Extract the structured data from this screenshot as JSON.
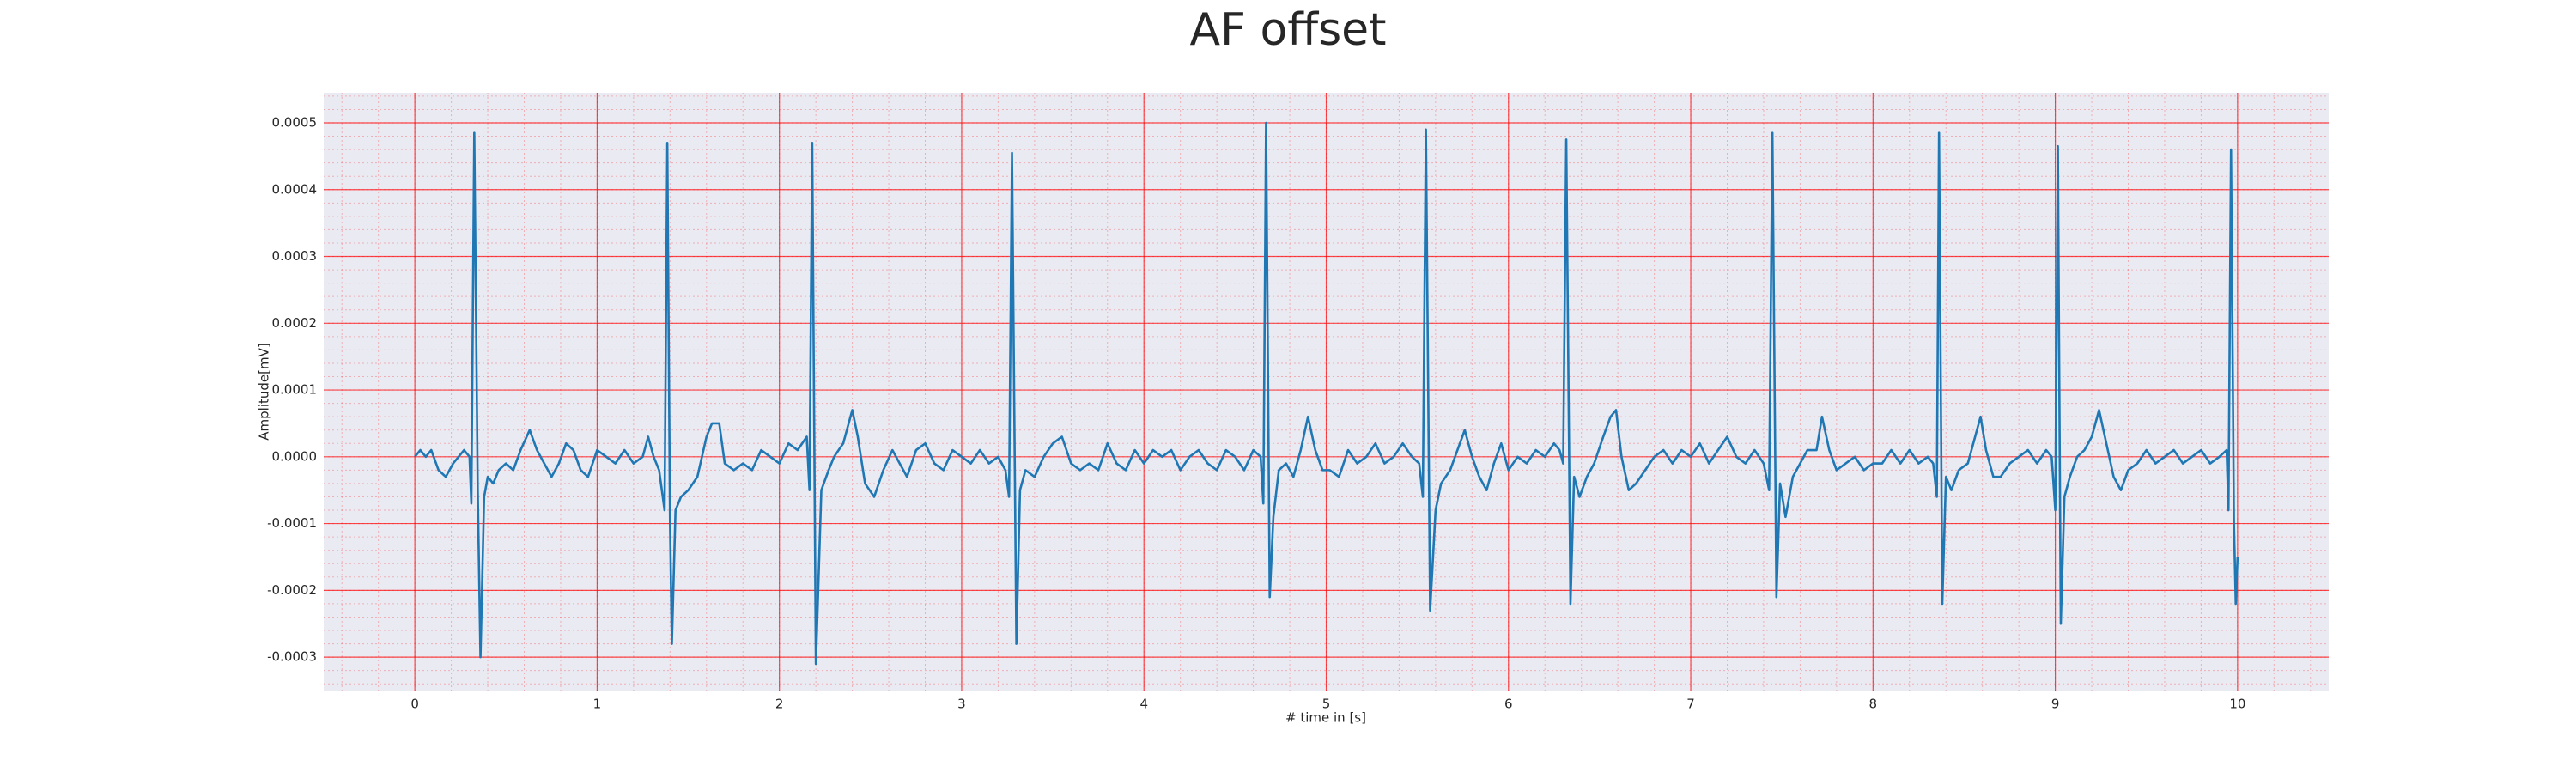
{
  "chart_data": {
    "type": "line",
    "title": "AF offset",
    "x_label": "# time in [s]",
    "y_label": "Amplitude[mV]",
    "color": "#1f77b4",
    "grid": true,
    "minor_grid": true,
    "grid_color": "#ff0000",
    "background": "#eaeaf2",
    "xlim": [
      -0.5,
      10.5
    ],
    "ylim": [
      -0.00035,
      0.000545
    ],
    "xticks": [
      0,
      1,
      2,
      3,
      4,
      5,
      6,
      7,
      8,
      9,
      10
    ],
    "yticks": [
      -0.0003,
      -0.0002,
      -0.0001,
      {
        "value": 0,
        "label": "0.0000"
      },
      0.0001,
      0.0002,
      0.0003,
      0.0004,
      0.0005
    ],
    "x": [
      0,
      0.03,
      0.06,
      0.09,
      0.13,
      0.17,
      0.21,
      0.24,
      0.27,
      0.3,
      0.31,
      0.326,
      0.345,
      0.36,
      0.38,
      0.4,
      0.43,
      0.46,
      0.5,
      0.54,
      0.58,
      0.63,
      0.67,
      0.71,
      0.75,
      0.79,
      0.83,
      0.87,
      0.91,
      0.95,
      1.0,
      1.05,
      1.1,
      1.15,
      1.2,
      1.25,
      1.28,
      1.31,
      1.34,
      1.37,
      1.385,
      1.4,
      1.41,
      1.43,
      1.46,
      1.5,
      1.55,
      1.6,
      1.63,
      1.67,
      1.7,
      1.75,
      1.8,
      1.85,
      1.9,
      1.95,
      2.0,
      2.05,
      2.1,
      2.15,
      2.165,
      2.18,
      2.2,
      2.23,
      2.27,
      2.3,
      2.35,
      2.4,
      2.43,
      2.47,
      2.52,
      2.57,
      2.62,
      2.66,
      2.7,
      2.75,
      2.8,
      2.85,
      2.9,
      2.95,
      3.0,
      3.05,
      3.1,
      3.15,
      3.2,
      3.24,
      3.26,
      3.276,
      3.3,
      3.32,
      3.35,
      3.4,
      3.45,
      3.5,
      3.55,
      3.6,
      3.65,
      3.7,
      3.75,
      3.8,
      3.85,
      3.9,
      3.95,
      4.0,
      4.05,
      4.1,
      4.15,
      4.2,
      4.25,
      4.3,
      4.35,
      4.4,
      4.45,
      4.5,
      4.55,
      4.6,
      4.64,
      4.655,
      4.67,
      4.69,
      4.71,
      4.74,
      4.78,
      4.82,
      4.86,
      4.9,
      4.94,
      4.98,
      5.02,
      5.07,
      5.12,
      5.17,
      5.22,
      5.27,
      5.32,
      5.37,
      5.42,
      5.47,
      5.51,
      5.53,
      5.547,
      5.57,
      5.6,
      5.63,
      5.68,
      5.72,
      5.76,
      5.8,
      5.84,
      5.88,
      5.92,
      5.96,
      6.0,
      6.05,
      6.1,
      6.15,
      6.2,
      6.25,
      6.28,
      6.3,
      6.317,
      6.34,
      6.36,
      6.39,
      6.43,
      6.47,
      6.52,
      6.56,
      6.59,
      6.62,
      6.66,
      6.7,
      6.75,
      6.8,
      6.85,
      6.9,
      6.95,
      7.0,
      7.05,
      7.1,
      7.15,
      7.2,
      7.25,
      7.3,
      7.35,
      7.4,
      7.43,
      7.448,
      7.47,
      7.49,
      7.52,
      7.56,
      7.6,
      7.64,
      7.69,
      7.72,
      7.76,
      7.8,
      7.85,
      7.9,
      7.95,
      8.0,
      8.05,
      8.1,
      8.15,
      8.2,
      8.25,
      8.3,
      8.33,
      8.35,
      8.362,
      8.38,
      8.4,
      8.43,
      8.47,
      8.52,
      8.56,
      8.59,
      8.62,
      8.66,
      8.7,
      8.75,
      8.8,
      8.85,
      8.9,
      8.95,
      8.98,
      9.0,
      9.014,
      9.03,
      9.05,
      9.08,
      9.12,
      9.16,
      9.2,
      9.24,
      9.28,
      9.32,
      9.36,
      9.4,
      9.45,
      9.5,
      9.55,
      9.6,
      9.65,
      9.7,
      9.75,
      9.8,
      9.85,
      9.9,
      9.94,
      9.95,
      9.964,
      9.98,
      9.99,
      10.0
    ],
    "values": [
      0,
      1e-05,
      0,
      1e-05,
      -2e-05,
      -3e-05,
      -1e-05,
      0,
      1e-05,
      0,
      -7e-05,
      0.000485,
      -5e-05,
      -0.0003,
      -6e-05,
      -3e-05,
      -4e-05,
      -2e-05,
      -1e-05,
      -2e-05,
      1e-05,
      4e-05,
      1e-05,
      -1e-05,
      -3e-05,
      -1e-05,
      2e-05,
      1e-05,
      -2e-05,
      -3e-05,
      1e-05,
      0,
      -1e-05,
      1e-05,
      -1e-05,
      0,
      3e-05,
      0,
      -2e-05,
      -8e-05,
      0.00047,
      -0.0001,
      -0.00028,
      -8e-05,
      -6e-05,
      -5e-05,
      -3e-05,
      3e-05,
      5e-05,
      5e-05,
      -1e-05,
      -2e-05,
      -1e-05,
      -2e-05,
      1e-05,
      0,
      -1e-05,
      2e-05,
      1e-05,
      3e-05,
      -5e-05,
      0.00047,
      -0.00031,
      -5e-05,
      -2e-05,
      0,
      2e-05,
      7e-05,
      3e-05,
      -4e-05,
      -6e-05,
      -2e-05,
      1e-05,
      -1e-05,
      -3e-05,
      1e-05,
      2e-05,
      -1e-05,
      -2e-05,
      1e-05,
      0,
      -1e-05,
      1e-05,
      -1e-05,
      0,
      -2e-05,
      -6e-05,
      0.000455,
      -0.00028,
      -5e-05,
      -2e-05,
      -3e-05,
      0,
      2e-05,
      3e-05,
      -1e-05,
      -2e-05,
      -1e-05,
      -2e-05,
      2e-05,
      -1e-05,
      -2e-05,
      1e-05,
      -1e-05,
      1e-05,
      0,
      1e-05,
      -2e-05,
      0,
      1e-05,
      -1e-05,
      -2e-05,
      1e-05,
      0,
      -2e-05,
      1e-05,
      0,
      -7e-05,
      0.0005,
      -0.00021,
      -9e-05,
      -2e-05,
      -1e-05,
      -3e-05,
      1e-05,
      6e-05,
      1e-05,
      -2e-05,
      -2e-05,
      -3e-05,
      1e-05,
      -1e-05,
      0,
      2e-05,
      -1e-05,
      0,
      2e-05,
      0,
      -1e-05,
      -6e-05,
      0.00049,
      -0.00023,
      -8e-05,
      -4e-05,
      -2e-05,
      1e-05,
      4e-05,
      0,
      -3e-05,
      -5e-05,
      -1e-05,
      2e-05,
      -2e-05,
      0,
      -1e-05,
      1e-05,
      0,
      2e-05,
      1e-05,
      -1e-05,
      0.000475,
      -0.00022,
      -3e-05,
      -6e-05,
      -3e-05,
      -1e-05,
      3e-05,
      6e-05,
      7e-05,
      0,
      -5e-05,
      -4e-05,
      -2e-05,
      0,
      1e-05,
      -1e-05,
      1e-05,
      0,
      2e-05,
      -1e-05,
      1e-05,
      3e-05,
      0,
      -1e-05,
      1e-05,
      -1e-05,
      -5e-05,
      0.000485,
      -0.00021,
      -4e-05,
      -9e-05,
      -3e-05,
      -1e-05,
      1e-05,
      1e-05,
      6e-05,
      1e-05,
      -2e-05,
      -1e-05,
      0,
      -2e-05,
      -1e-05,
      -1e-05,
      1e-05,
      -1e-05,
      1e-05,
      -1e-05,
      0,
      -1e-05,
      -6e-05,
      0.000485,
      -0.00022,
      -3e-05,
      -5e-05,
      -2e-05,
      -1e-05,
      3e-05,
      6e-05,
      1e-05,
      -3e-05,
      -3e-05,
      -1e-05,
      0,
      1e-05,
      -1e-05,
      1e-05,
      0,
      -8e-05,
      0.000465,
      -0.00025,
      -6e-05,
      -3e-05,
      0,
      1e-05,
      3e-05,
      7e-05,
      2e-05,
      -3e-05,
      -5e-05,
      -2e-05,
      -1e-05,
      1e-05,
      -1e-05,
      0,
      1e-05,
      -1e-05,
      0,
      1e-05,
      -1e-05,
      0,
      1e-05,
      -8e-05,
      0.00046,
      -0.0001,
      -0.00022,
      -0.00015
    ]
  }
}
